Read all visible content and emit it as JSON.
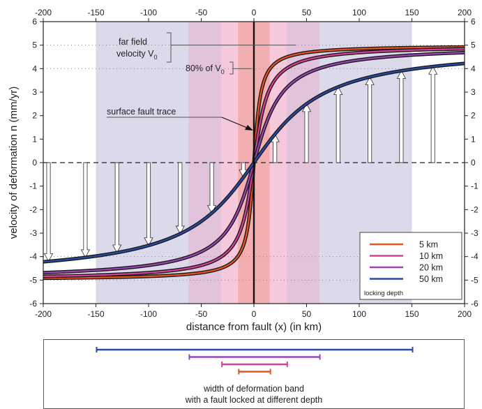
{
  "chart_data": {
    "type": "line",
    "xlabel": "distance from fault (x) (in km)",
    "ylabel": "velocity of deformation n (mm/yr)",
    "xlim": [
      -200,
      200
    ],
    "ylim": [
      -6,
      6
    ],
    "x_ticks": [
      -200,
      -150,
      -100,
      -50,
      0,
      50,
      100,
      150,
      200
    ],
    "y_ticks": [
      6,
      5,
      4,
      3,
      2,
      1,
      0,
      -1,
      -2,
      -3,
      -4,
      -5,
      -6
    ],
    "far_field_velocity": 5,
    "grid": false,
    "legend_position": "bottom-right",
    "legend_title": "locking depth",
    "series": [
      {
        "name": "5 km",
        "locking_depth": 5,
        "color": "#e8531f",
        "band_halfwidth": 15
      },
      {
        "name": "10 km",
        "locking_depth": 10,
        "color": "#d6409a",
        "band_halfwidth": 31
      },
      {
        "name": "20 km",
        "locking_depth": 20,
        "color": "#9b45b5",
        "band_halfwidth": 62
      },
      {
        "name": "50 km",
        "locking_depth": 50,
        "color": "#2a4aa8",
        "band_halfwidth": 150
      }
    ],
    "bands": [
      {
        "name": "50 km band",
        "x": [
          -150,
          150
        ],
        "color": "#dcd9ea"
      },
      {
        "name": "20 km band",
        "x": [
          -62,
          62
        ],
        "color": "#e2c3dc"
      },
      {
        "name": "10 km band",
        "x": [
          -31,
          31
        ],
        "color": "#f5c9db"
      },
      {
        "name": "5 km band",
        "x": [
          -15,
          15
        ],
        "color": "#f3aeb1"
      }
    ],
    "velocity_arrows_x": [
      -195,
      -160,
      -130,
      -100,
      -70,
      -40,
      -10,
      20,
      50,
      80,
      110,
      140,
      170
    ],
    "annotations": {
      "far_field_line1": "far field",
      "far_field_line2": "velocity V",
      "far_field_sub": "0",
      "pct_prefix": "80% of V",
      "pct_sub": "0",
      "fault_trace": "surface fault trace"
    }
  },
  "band_panel": {
    "caption_line1": "width of deformation band",
    "caption_line2": "with a fault locked at different depth"
  }
}
